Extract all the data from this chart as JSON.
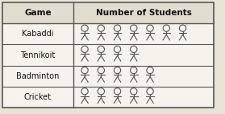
{
  "col1_header": "Game",
  "col2_header": "Number of Students",
  "games": [
    "Kabaddi",
    "Tennikoit",
    "Badminton",
    "Cricket"
  ],
  "counts": [
    7,
    4,
    5,
    5
  ],
  "bg_color": "#e8e4d8",
  "cell_bg": "#f5f3ec",
  "header_bg": "#e0ddd0",
  "line_color": "#555555",
  "text_color": "#111111",
  "figure_color": "#555555",
  "figure_size": [
    2.79,
    1.42
  ],
  "dpi": 100
}
